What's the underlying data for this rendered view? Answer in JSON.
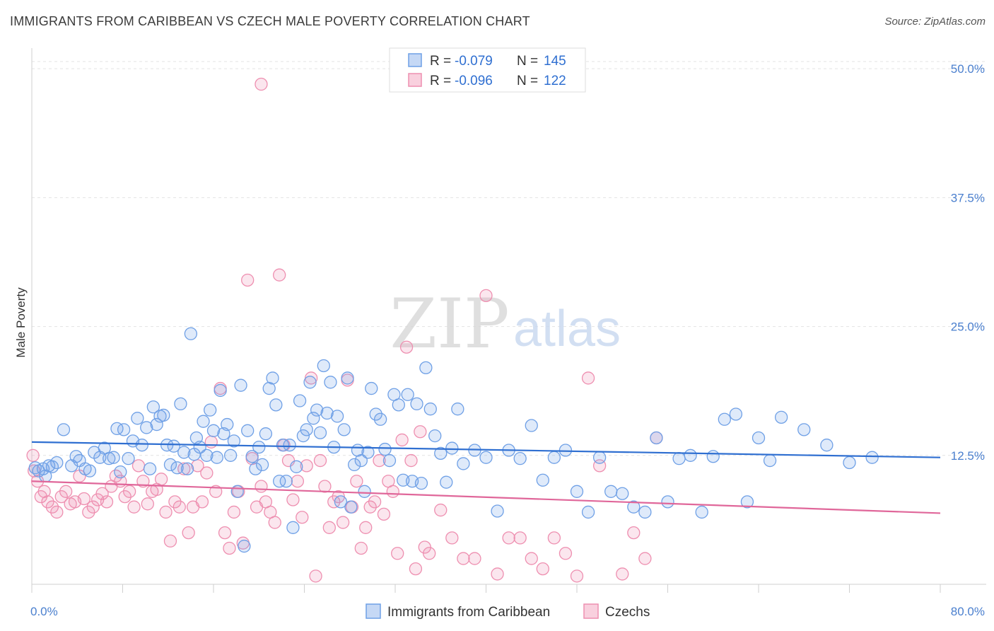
{
  "title": "IMMIGRANTS FROM CARIBBEAN VS CZECH MALE POVERTY CORRELATION CHART",
  "source": "Source: ZipAtlas.com",
  "watermark": {
    "zip": "ZIP",
    "atlas": "atlas"
  },
  "legend_top": {
    "rows": [
      {
        "r_label": "R = ",
        "r_value": "-0.079",
        "n_label": "N = ",
        "n_value": "145",
        "color": "#6fa0e6"
      },
      {
        "r_label": "R = ",
        "r_value": "-0.096",
        "n_label": "N = ",
        "n_value": "122",
        "color": "#ee8fb0"
      }
    ]
  },
  "chart_data": {
    "type": "scatter",
    "ylabel": "Male Poverty",
    "xlim": [
      0,
      80
    ],
    "ylim": [
      0,
      52
    ],
    "y_ticks": [
      {
        "value": 12.5,
        "label": "12.5%"
      },
      {
        "value": 25.0,
        "label": "25.0%"
      },
      {
        "value": 37.5,
        "label": "37.5%"
      },
      {
        "value": 50.0,
        "label": "50.0%"
      }
    ],
    "x_tick_labels": {
      "min": "0.0%",
      "max": "80.0%"
    },
    "grid": true,
    "legend_placement": "top-center",
    "series": [
      {
        "name": "Immigrants from Caribbean",
        "color": "#6fa0e6",
        "trend": {
          "x": [
            0,
            80
          ],
          "y": [
            13.8,
            12.3
          ]
        },
        "points": [
          [
            0.3,
            11.3
          ],
          [
            0.6,
            11.0
          ],
          [
            1.0,
            11.2
          ],
          [
            1.2,
            10.5
          ],
          [
            1.5,
            11.5
          ],
          [
            1.8,
            11.4
          ],
          [
            2.2,
            11.8
          ],
          [
            2.8,
            15.0
          ],
          [
            3.5,
            11.5
          ],
          [
            3.9,
            12.4
          ],
          [
            4.2,
            12.0
          ],
          [
            4.7,
            11.2
          ],
          [
            5.1,
            11.0
          ],
          [
            5.5,
            12.8
          ],
          [
            6.0,
            12.3
          ],
          [
            6.4,
            13.2
          ],
          [
            6.8,
            12.2
          ],
          [
            7.2,
            12.3
          ],
          [
            7.5,
            15.1
          ],
          [
            7.8,
            10.9
          ],
          [
            8.1,
            15.0
          ],
          [
            8.5,
            12.2
          ],
          [
            8.9,
            13.9
          ],
          [
            9.3,
            16.1
          ],
          [
            9.7,
            13.5
          ],
          [
            10.1,
            15.2
          ],
          [
            10.4,
            11.2
          ],
          [
            10.7,
            17.2
          ],
          [
            11.0,
            15.5
          ],
          [
            11.3,
            16.3
          ],
          [
            11.6,
            16.4
          ],
          [
            11.9,
            13.5
          ],
          [
            12.2,
            11.6
          ],
          [
            12.5,
            13.4
          ],
          [
            12.8,
            11.3
          ],
          [
            13.1,
            17.5
          ],
          [
            13.4,
            12.8
          ],
          [
            13.7,
            11.2
          ],
          [
            14.0,
            24.3
          ],
          [
            14.3,
            12.6
          ],
          [
            14.5,
            14.2
          ],
          [
            14.8,
            13.3
          ],
          [
            15.1,
            15.8
          ],
          [
            15.4,
            12.5
          ],
          [
            15.7,
            16.9
          ],
          [
            16.0,
            14.9
          ],
          [
            16.3,
            12.3
          ],
          [
            16.6,
            18.8
          ],
          [
            16.9,
            14.6
          ],
          [
            17.2,
            15.5
          ],
          [
            17.5,
            12.5
          ],
          [
            17.8,
            13.9
          ],
          [
            18.1,
            9.0
          ],
          [
            18.4,
            19.3
          ],
          [
            18.7,
            3.7
          ],
          [
            19.0,
            14.9
          ],
          [
            19.4,
            12.4
          ],
          [
            19.7,
            11.2
          ],
          [
            20.0,
            13.3
          ],
          [
            20.3,
            11.6
          ],
          [
            20.6,
            14.6
          ],
          [
            20.9,
            19.0
          ],
          [
            21.2,
            20.0
          ],
          [
            21.5,
            17.4
          ],
          [
            21.8,
            10.0
          ],
          [
            22.1,
            13.5
          ],
          [
            22.4,
            10.0
          ],
          [
            22.7,
            13.5
          ],
          [
            23.0,
            5.5
          ],
          [
            23.3,
            11.4
          ],
          [
            23.6,
            17.8
          ],
          [
            23.9,
            14.4
          ],
          [
            24.2,
            15.0
          ],
          [
            24.5,
            19.6
          ],
          [
            24.8,
            16.1
          ],
          [
            25.1,
            16.9
          ],
          [
            25.4,
            14.7
          ],
          [
            25.7,
            21.2
          ],
          [
            26.0,
            16.6
          ],
          [
            26.3,
            19.6
          ],
          [
            26.6,
            13.3
          ],
          [
            26.9,
            16.3
          ],
          [
            27.2,
            8.0
          ],
          [
            27.5,
            15.0
          ],
          [
            27.8,
            20.0
          ],
          [
            28.1,
            7.5
          ],
          [
            28.4,
            11.6
          ],
          [
            28.7,
            13.0
          ],
          [
            29.0,
            12.0
          ],
          [
            29.3,
            9.0
          ],
          [
            29.6,
            12.8
          ],
          [
            29.9,
            19.0
          ],
          [
            30.3,
            16.5
          ],
          [
            30.7,
            16.0
          ],
          [
            31.1,
            13.1
          ],
          [
            31.5,
            12.0
          ],
          [
            31.9,
            18.4
          ],
          [
            32.3,
            17.4
          ],
          [
            32.7,
            10.1
          ],
          [
            33.1,
            18.4
          ],
          [
            33.5,
            10.0
          ],
          [
            33.9,
            17.5
          ],
          [
            34.3,
            9.8
          ],
          [
            34.7,
            21.0
          ],
          [
            35.1,
            17.0
          ],
          [
            35.5,
            14.4
          ],
          [
            36.0,
            12.7
          ],
          [
            36.5,
            9.9
          ],
          [
            37.0,
            13.2
          ],
          [
            37.5,
            17.0
          ],
          [
            38.0,
            11.7
          ],
          [
            39.0,
            13.0
          ],
          [
            40.0,
            12.3
          ],
          [
            41.0,
            7.1
          ],
          [
            42.0,
            13.0
          ],
          [
            43.0,
            12.2
          ],
          [
            44.0,
            15.4
          ],
          [
            45.0,
            10.1
          ],
          [
            46.0,
            12.3
          ],
          [
            47.0,
            13.0
          ],
          [
            48.0,
            9.0
          ],
          [
            49.0,
            7.0
          ],
          [
            50.0,
            12.3
          ],
          [
            51.0,
            9.0
          ],
          [
            52.0,
            8.8
          ],
          [
            53.0,
            7.5
          ],
          [
            54.0,
            7.0
          ],
          [
            55.0,
            14.2
          ],
          [
            56.0,
            8.0
          ],
          [
            57.0,
            12.2
          ],
          [
            58.0,
            12.5
          ],
          [
            59.0,
            7.0
          ],
          [
            60.0,
            12.4
          ],
          [
            61.0,
            16.0
          ],
          [
            62.0,
            16.5
          ],
          [
            63.0,
            8.0
          ],
          [
            64.0,
            14.2
          ],
          [
            65.0,
            12.0
          ],
          [
            66.0,
            16.2
          ],
          [
            68.0,
            15.0
          ],
          [
            70.0,
            13.5
          ],
          [
            72.0,
            11.8
          ],
          [
            74.0,
            12.3
          ]
        ]
      },
      {
        "name": "Czechs",
        "color": "#ee8fb0",
        "trend": {
          "x": [
            0,
            80
          ],
          "y": [
            10.0,
            6.9
          ]
        },
        "points": [
          [
            0.2,
            11.0
          ],
          [
            0.5,
            10.0
          ],
          [
            0.8,
            8.5
          ],
          [
            1.1,
            9.0
          ],
          [
            1.4,
            8.0
          ],
          [
            1.8,
            7.5
          ],
          [
            2.2,
            7.0
          ],
          [
            2.6,
            8.5
          ],
          [
            3.0,
            9.0
          ],
          [
            3.4,
            7.8
          ],
          [
            3.8,
            8.0
          ],
          [
            4.2,
            10.5
          ],
          [
            4.6,
            8.3
          ],
          [
            5.0,
            7.0
          ],
          [
            5.4,
            7.5
          ],
          [
            5.8,
            8.2
          ],
          [
            6.2,
            8.8
          ],
          [
            6.6,
            8.0
          ],
          [
            7.0,
            9.5
          ],
          [
            7.4,
            10.5
          ],
          [
            7.8,
            10.0
          ],
          [
            8.2,
            8.5
          ],
          [
            8.6,
            9.0
          ],
          [
            9.0,
            7.5
          ],
          [
            9.4,
            11.5
          ],
          [
            9.8,
            10.0
          ],
          [
            10.2,
            7.8
          ],
          [
            10.6,
            9.0
          ],
          [
            11.0,
            9.2
          ],
          [
            11.4,
            10.2
          ],
          [
            11.8,
            7.0
          ],
          [
            12.2,
            4.2
          ],
          [
            12.6,
            8.0
          ],
          [
            13.0,
            7.5
          ],
          [
            13.4,
            11.2
          ],
          [
            13.8,
            5.0
          ],
          [
            14.2,
            7.5
          ],
          [
            14.6,
            11.5
          ],
          [
            15.0,
            8.0
          ],
          [
            15.4,
            10.8
          ],
          [
            15.8,
            13.8
          ],
          [
            16.2,
            9.0
          ],
          [
            16.6,
            19.0
          ],
          [
            17.0,
            5.0
          ],
          [
            17.4,
            3.5
          ],
          [
            17.8,
            7.0
          ],
          [
            18.2,
            9.0
          ],
          [
            18.6,
            4.0
          ],
          [
            19.0,
            29.5
          ],
          [
            19.4,
            12.2
          ],
          [
            19.8,
            7.5
          ],
          [
            20.2,
            9.5
          ],
          [
            20.6,
            8.0
          ],
          [
            21.0,
            7.0
          ],
          [
            21.4,
            6.0
          ],
          [
            21.8,
            30.0
          ],
          [
            22.2,
            13.5
          ],
          [
            22.6,
            12.0
          ],
          [
            23.0,
            8.2
          ],
          [
            23.4,
            10.0
          ],
          [
            23.8,
            6.5
          ],
          [
            24.2,
            11.5
          ],
          [
            24.6,
            20.0
          ],
          [
            25.0,
            0.8
          ],
          [
            25.4,
            12.0
          ],
          [
            25.8,
            9.5
          ],
          [
            26.2,
            5.5
          ],
          [
            26.6,
            8.0
          ],
          [
            27.0,
            8.5
          ],
          [
            27.4,
            6.0
          ],
          [
            27.8,
            19.8
          ],
          [
            28.2,
            7.5
          ],
          [
            28.6,
            10.0
          ],
          [
            29.0,
            3.5
          ],
          [
            29.4,
            5.5
          ],
          [
            29.8,
            7.5
          ],
          [
            30.2,
            8.0
          ],
          [
            30.6,
            12.0
          ],
          [
            31.0,
            6.8
          ],
          [
            31.4,
            10.0
          ],
          [
            31.8,
            9.0
          ],
          [
            32.2,
            3.0
          ],
          [
            32.6,
            14.0
          ],
          [
            33.0,
            23.0
          ],
          [
            33.4,
            12.0
          ],
          [
            33.8,
            1.5
          ],
          [
            34.2,
            14.8
          ],
          [
            34.6,
            3.6
          ],
          [
            35.0,
            3.0
          ],
          [
            36.0,
            7.2
          ],
          [
            37.0,
            4.5
          ],
          [
            38.0,
            2.5
          ],
          [
            39.0,
            2.5
          ],
          [
            40.0,
            28.0
          ],
          [
            41.0,
            1.0
          ],
          [
            42.0,
            4.5
          ],
          [
            43.0,
            4.5
          ],
          [
            44.0,
            2.5
          ],
          [
            45.0,
            1.5
          ],
          [
            46.0,
            4.5
          ],
          [
            47.0,
            3.0
          ],
          [
            48.0,
            0.8
          ],
          [
            49.0,
            20.0
          ],
          [
            50.0,
            11.5
          ],
          [
            52.0,
            1.0
          ],
          [
            53.0,
            5.0
          ],
          [
            54.0,
            2.5
          ],
          [
            55.0,
            14.2
          ],
          [
            20.2,
            48.5
          ],
          [
            0.1,
            12.5
          ]
        ]
      }
    ]
  },
  "legend_bottom": [
    {
      "label": "Immigrants from Caribbean",
      "color": "#6fa0e6"
    },
    {
      "label": "Czechs",
      "color": "#ee8fb0"
    }
  ]
}
